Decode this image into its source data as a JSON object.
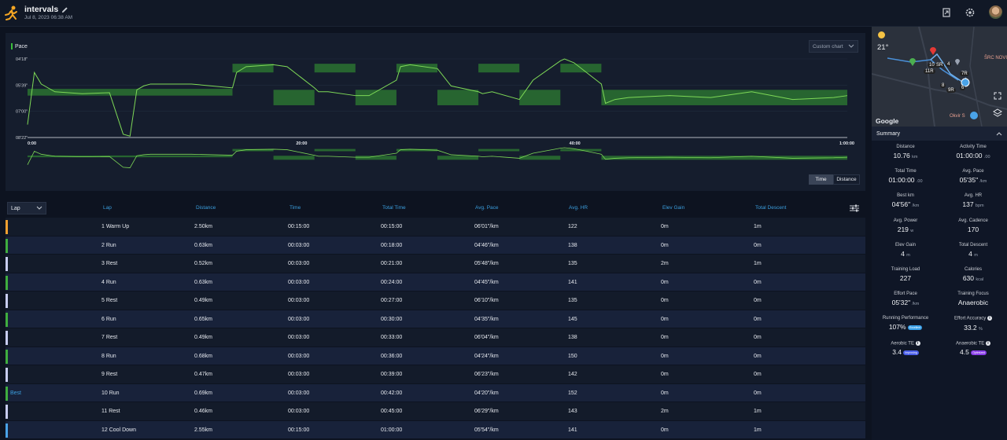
{
  "header": {
    "title": "intervals",
    "subtitle": "Jul 8, 2023 06:38 AM"
  },
  "chart": {
    "label": "Pace",
    "custom_chart": "Custom chart",
    "toggle_time": "Time",
    "toggle_distance": "Distance",
    "line_color": "#7ed957",
    "target_color": "#2e7d32",
    "chart_data": {
      "type": "line",
      "title": "",
      "xlabel": "",
      "ylabel": "Pace",
      "y_ticks": [
        "04'18\"",
        "05'39\"",
        "07'00\"",
        "08'22\""
      ],
      "x_ticks": [
        "0:00",
        "20:00",
        "40:00",
        "1:00:00"
      ],
      "x_range_minutes": [
        0,
        60
      ],
      "y_range_min_per_km": [
        4.3,
        8.37
      ],
      "y_inverted": true,
      "series": [
        {
          "x": [
            0,
            0.5,
            1,
            2,
            4,
            6,
            7,
            7.5,
            8,
            8.5,
            9,
            12,
            15,
            15.3,
            16,
            18,
            19,
            21,
            21.3,
            22,
            24,
            25,
            27,
            27.3,
            28,
            30,
            31,
            33,
            33.3,
            34,
            36,
            37,
            39,
            39.3,
            40,
            42,
            42.3,
            43,
            44,
            47,
            50,
            53,
            56,
            59,
            60
          ],
          "y": [
            7.7,
            5.0,
            5.6,
            6.0,
            6.1,
            6.05,
            8.2,
            8.3,
            5.9,
            5.7,
            5.6,
            5.6,
            5.8,
            5.0,
            4.7,
            4.6,
            4.7,
            5.8,
            6.0,
            6.0,
            6.2,
            6.2,
            5.4,
            4.7,
            4.6,
            4.8,
            5.7,
            6.0,
            6.1,
            6.0,
            6.4,
            5.4,
            4.4,
            4.3,
            4.5,
            5.6,
            6.6,
            6.4,
            6.3,
            6.2,
            6.3,
            6.0,
            6.4,
            6.3,
            6.2
          ]
        }
      ],
      "targets": [
        {
          "x0": 0,
          "x1": 15,
          "y0": 5.85,
          "y1": 6.2
        },
        {
          "x0": 15,
          "x1": 18,
          "y0": 4.55,
          "y1": 5.0
        },
        {
          "x0": 18,
          "x1": 21,
          "y0": 5.9,
          "y1": 6.7
        },
        {
          "x0": 21,
          "x1": 24,
          "y0": 4.55,
          "y1": 5.0
        },
        {
          "x0": 24,
          "x1": 27,
          "y0": 5.9,
          "y1": 6.7
        },
        {
          "x0": 27,
          "x1": 30,
          "y0": 4.55,
          "y1": 5.0
        },
        {
          "x0": 30,
          "x1": 33,
          "y0": 5.9,
          "y1": 6.7
        },
        {
          "x0": 33,
          "x1": 36,
          "y0": 4.55,
          "y1": 5.0
        },
        {
          "x0": 36,
          "x1": 39,
          "y0": 5.9,
          "y1": 6.7
        },
        {
          "x0": 39,
          "x1": 42,
          "y0": 4.55,
          "y1": 5.0
        },
        {
          "x0": 42,
          "x1": 60,
          "y0": 5.9,
          "y1": 6.7
        }
      ]
    }
  },
  "table": {
    "select": "Lap",
    "headers": [
      "Lap",
      "Distance",
      "Time",
      "Total Time",
      "Avg. Pace",
      "Avg. HR",
      "Elev Gain",
      "Total Descent"
    ],
    "rows": [
      {
        "badge": "",
        "color": "#f0a030",
        "lap": "1 Warm Up",
        "dist": "2.50km",
        "time": "00:15:00",
        "total": "00:15:00",
        "pace": "06'01\"/km",
        "hr": "122",
        "gain": "0m",
        "desc": "1m"
      },
      {
        "badge": "",
        "color": "#3fae3f",
        "lap": "2 Run",
        "dist": "0.63km",
        "time": "00:03:00",
        "total": "00:18:00",
        "pace": "04'46\"/km",
        "hr": "138",
        "gain": "0m",
        "desc": "0m"
      },
      {
        "badge": "",
        "color": "#c7ccf0",
        "lap": "3 Rest",
        "dist": "0.52km",
        "time": "00:03:00",
        "total": "00:21:00",
        "pace": "05'48\"/km",
        "hr": "135",
        "gain": "2m",
        "desc": "1m"
      },
      {
        "badge": "",
        "color": "#3fae3f",
        "lap": "4 Run",
        "dist": "0.63km",
        "time": "00:03:00",
        "total": "00:24:00",
        "pace": "04'45\"/km",
        "hr": "141",
        "gain": "0m",
        "desc": "0m"
      },
      {
        "badge": "",
        "color": "#c7ccf0",
        "lap": "5 Rest",
        "dist": "0.49km",
        "time": "00:03:00",
        "total": "00:27:00",
        "pace": "06'10\"/km",
        "hr": "135",
        "gain": "0m",
        "desc": "0m"
      },
      {
        "badge": "",
        "color": "#3fae3f",
        "lap": "6 Run",
        "dist": "0.65km",
        "time": "00:03:00",
        "total": "00:30:00",
        "pace": "04'35\"/km",
        "hr": "145",
        "gain": "0m",
        "desc": "0m"
      },
      {
        "badge": "",
        "color": "#c7ccf0",
        "lap": "7 Rest",
        "dist": "0.49km",
        "time": "00:03:00",
        "total": "00:33:00",
        "pace": "06'04\"/km",
        "hr": "138",
        "gain": "0m",
        "desc": "0m"
      },
      {
        "badge": "",
        "color": "#3fae3f",
        "lap": "8 Run",
        "dist": "0.68km",
        "time": "00:03:00",
        "total": "00:36:00",
        "pace": "04'24\"/km",
        "hr": "150",
        "gain": "0m",
        "desc": "0m"
      },
      {
        "badge": "",
        "color": "#c7ccf0",
        "lap": "9 Rest",
        "dist": "0.47km",
        "time": "00:03:00",
        "total": "00:39:00",
        "pace": "06'23\"/km",
        "hr": "142",
        "gain": "0m",
        "desc": "0m"
      },
      {
        "badge": "Best",
        "color": "#3fae3f",
        "lap": "10 Run",
        "dist": "0.69km",
        "time": "00:03:00",
        "total": "00:42:00",
        "pace": "04'20\"/km",
        "hr": "152",
        "gain": "0m",
        "desc": "0m"
      },
      {
        "badge": "",
        "color": "#c7ccf0",
        "lap": "11 Rest",
        "dist": "0.46km",
        "time": "00:03:00",
        "total": "00:45:00",
        "pace": "06'29\"/km",
        "hr": "143",
        "gain": "2m",
        "desc": "1m"
      },
      {
        "badge": "",
        "color": "#4aa3e8",
        "lap": "12 Cool Down",
        "dist": "2.55km",
        "time": "00:15:00",
        "total": "01:00:00",
        "pace": "05'54\"/km",
        "hr": "141",
        "gain": "0m",
        "desc": "1m"
      }
    ]
  },
  "sidebar": {
    "temperature": "21°",
    "google": "Google",
    "map_labels": [
      "ŠRC NOVI",
      "Okvir S"
    ],
    "map_markers": [
      "SR",
      "10",
      "11R",
      "4",
      "7R",
      "8",
      "9R",
      "6"
    ],
    "summary_title": "Summary",
    "stats": [
      {
        "label": "Distance",
        "value": "10.76",
        "unit": "km"
      },
      {
        "label": "Activity Time",
        "value": "01:00:00",
        "unit": ".00"
      },
      {
        "label": "Total Time",
        "value": "01:00:00",
        "unit": ".00"
      },
      {
        "label": "Avg. Pace",
        "value": "05'35\"",
        "unit": "/km"
      },
      {
        "label": "Best km",
        "value": "04'56\"",
        "unit": "/km"
      },
      {
        "label": "Avg. HR",
        "value": "137",
        "unit": "bpm"
      },
      {
        "label": "Avg. Power",
        "value": "219",
        "unit": "w"
      },
      {
        "label": "Avg. Cadence",
        "value": "170",
        "unit": ""
      },
      {
        "label": "Elev Gain",
        "value": "4",
        "unit": "m"
      },
      {
        "label": "Total Descent",
        "value": "4",
        "unit": "m"
      },
      {
        "label": "Training Load",
        "value": "227",
        "unit": ""
      },
      {
        "label": "Calories",
        "value": "630",
        "unit": "kcal"
      },
      {
        "label": "Effort Pace",
        "value": "05'32\"",
        "unit": "/km"
      },
      {
        "label": "Training Focus",
        "value": "Anaerobic",
        "unit": ""
      },
      {
        "label": "Running Performance",
        "value": "107%",
        "unit": "",
        "tag": "Excellent",
        "tag_color": "#3aa0e8"
      },
      {
        "label": "Effort Accuracy",
        "value": "33.2",
        "unit": "%",
        "info": "i"
      },
      {
        "label": "Aerobic TE",
        "value": "3.4",
        "unit": "",
        "tag": "Improving",
        "tag_color": "#4a5ee8",
        "info": "i"
      },
      {
        "label": "Anaerobic TE",
        "value": "4.5",
        "unit": "",
        "tag": "Optimized",
        "tag_color": "#8a3ee8",
        "info": "i"
      }
    ]
  }
}
